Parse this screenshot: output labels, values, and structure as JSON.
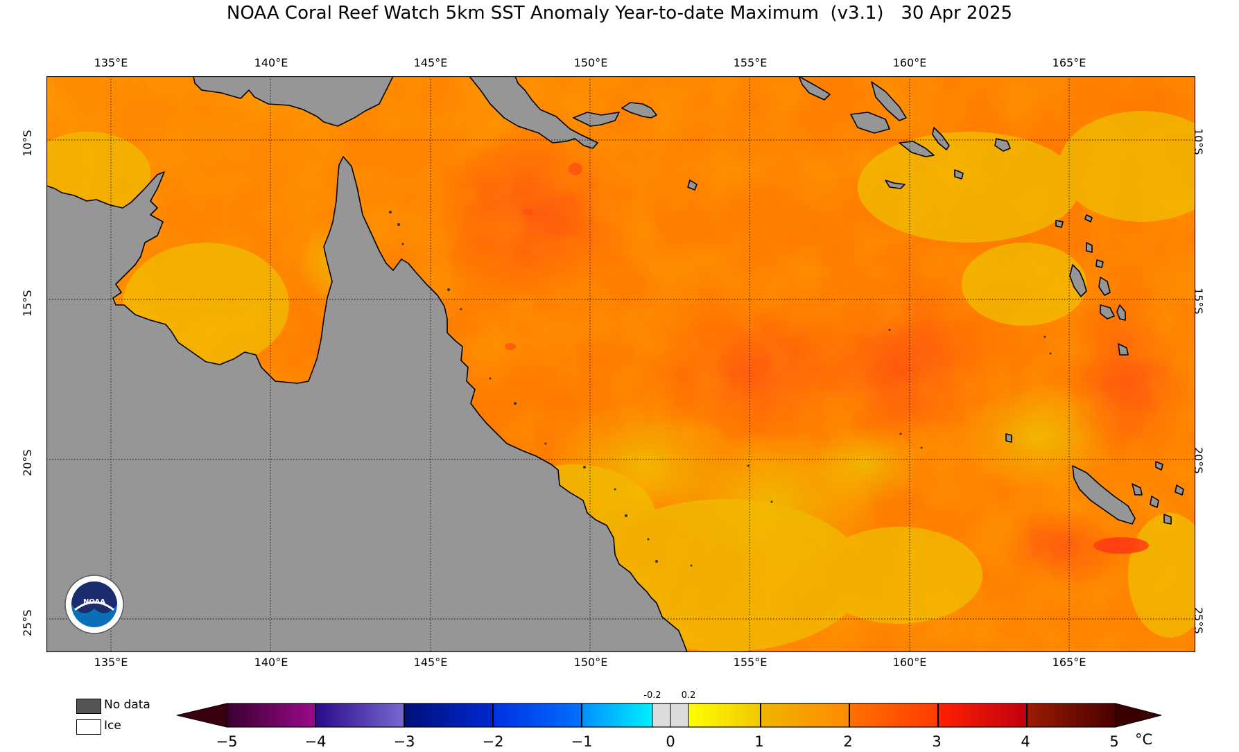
{
  "title": "NOAA Coral Reef Watch 5km SST Anomaly Year-to-date Maximum  (v3.1)   30 Apr 2025",
  "map": {
    "lon_ticks": [
      "135°E",
      "140°E",
      "145°E",
      "150°E",
      "155°E",
      "160°E",
      "165°E"
    ],
    "lat_ticks": [
      "10°S",
      "15°S",
      "20°S",
      "25°S"
    ],
    "extent": {
      "lon_min": 133,
      "lon_max": 169,
      "lat_north": -8,
      "lat_south": -26
    },
    "land_color": "#969696",
    "coast_color": "#000000"
  },
  "legend": {
    "no_data_label": "No data",
    "no_data_color": "#555555",
    "ice_label": "Ice",
    "ice_color": "#ffffff"
  },
  "colorbar": {
    "labels": [
      "−5",
      "−4",
      "−3",
      "−2",
      "−1",
      "0",
      "1",
      "2",
      "3",
      "4",
      "5"
    ],
    "small_labels": [
      "-0.2",
      "0.2"
    ],
    "unit": "°C",
    "colors": {
      "m5": "#3a0010",
      "m4": "#6a0a6a",
      "m3": "#5a50c0",
      "m2": "#0010a0",
      "m1": "#0050ff",
      "m0": "#00e0ff",
      "neutral": "#dcdcdc",
      "p1": "#f5e600",
      "p2": "#f0b800",
      "p3": "#ff7800",
      "p4": "#ff2000",
      "p5": "#a01800",
      "end": "#3a0000"
    }
  },
  "sst_colors": {
    "warm_low": "#f2b400",
    "warm_mid": "#ff9000",
    "warm_high": "#ff7000",
    "hot": "#ff5a10"
  },
  "logo_text": "NOAA"
}
